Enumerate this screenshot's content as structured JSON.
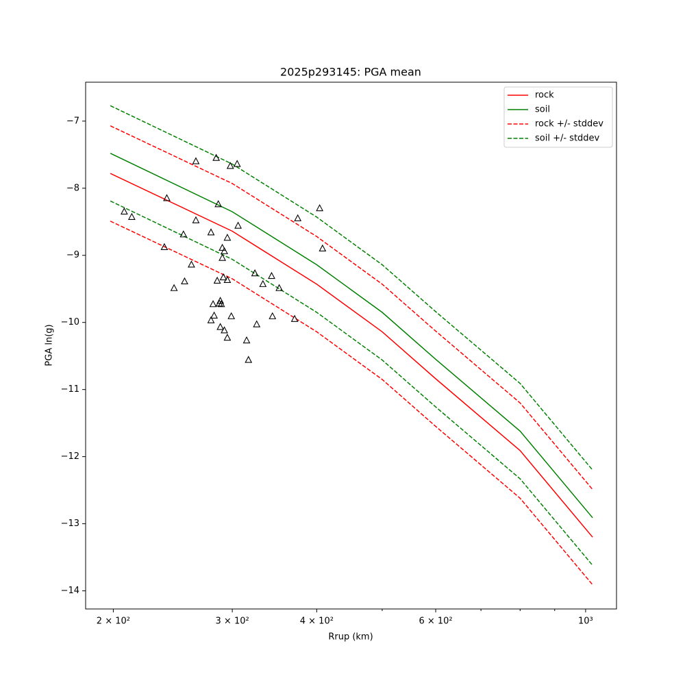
{
  "chart_data": {
    "type": "line",
    "title": "2025p293145: PGA mean",
    "xlabel": "Rrup (km)",
    "ylabel": "PGA ln(g)",
    "xscale": "log",
    "xlim": [
      182,
      1111
    ],
    "ylim": [
      -14.27,
      -6.42
    ],
    "xticks": [
      {
        "value": 200,
        "label": "2 × 10²"
      },
      {
        "value": 300,
        "label": "3 × 10²"
      },
      {
        "value": 400,
        "label": "4 × 10²"
      },
      {
        "value": 600,
        "label": "6 × 10²"
      },
      {
        "value": 1000,
        "label": "10³"
      }
    ],
    "xminorticks": [
      500,
      700,
      800,
      900
    ],
    "yticks": [
      {
        "value": -7,
        "label": "−7"
      },
      {
        "value": -8,
        "label": "−8"
      },
      {
        "value": -9,
        "label": "−9"
      },
      {
        "value": -10,
        "label": "−10"
      },
      {
        "value": -11,
        "label": "−11"
      },
      {
        "value": -12,
        "label": "−12"
      },
      {
        "value": -13,
        "label": "−13"
      },
      {
        "value": -14,
        "label": "−14"
      }
    ],
    "legend": "upper right",
    "x": [
      198,
      300,
      400,
      500,
      600,
      800,
      1024
    ],
    "series": [
      {
        "name": "rock",
        "color": "#ff0000",
        "style": "solid",
        "values": [
          -7.78,
          -8.64,
          -9.43,
          -10.14,
          -10.84,
          -11.91,
          -13.2
        ]
      },
      {
        "name": "soil",
        "color": "#008000",
        "style": "solid",
        "values": [
          -7.48,
          -8.35,
          -9.14,
          -9.85,
          -10.55,
          -11.62,
          -12.91
        ]
      },
      {
        "name": "rock +/- stddev",
        "color": "#ff0000",
        "style": "dashed",
        "upper": [
          -7.07,
          -7.93,
          -8.72,
          -9.43,
          -10.13,
          -11.2,
          -12.49
        ],
        "lower": [
          -8.49,
          -9.35,
          -10.14,
          -10.85,
          -11.55,
          -12.62,
          -13.91
        ]
      },
      {
        "name": "soil +/- stddev",
        "color": "#008000",
        "style": "dashed",
        "upper": [
          -6.77,
          -7.64,
          -8.43,
          -9.14,
          -9.84,
          -10.91,
          -12.2
        ],
        "lower": [
          -8.19,
          -9.06,
          -9.85,
          -10.56,
          -11.26,
          -12.33,
          -13.62
        ]
      }
    ],
    "points": {
      "color": "#000000",
      "x": [
        207.6,
        213,
        240,
        238,
        246,
        254,
        255,
        261,
        265,
        265,
        279,
        279,
        281,
        282,
        284,
        285,
        286,
        287,
        288,
        288,
        289,
        290,
        290,
        291,
        292,
        292,
        295,
        295,
        295,
        298,
        299,
        305,
        306,
        315,
        317,
        324,
        326,
        333,
        343,
        344,
        352,
        371,
        375,
        404,
        408
      ],
      "y": [
        -8.35,
        -8.43,
        -8.15,
        -8.88,
        -9.49,
        -8.69,
        -9.39,
        -9.14,
        -7.6,
        -8.48,
        -8.66,
        -9.97,
        -9.73,
        -9.9,
        -7.55,
        -9.38,
        -8.24,
        -9.72,
        -10.07,
        -9.68,
        -9.73,
        -9.04,
        -8.89,
        -9.33,
        -10.12,
        -8.94,
        -9.37,
        -8.74,
        -10.23,
        -7.67,
        -9.91,
        -7.64,
        -8.56,
        -10.27,
        -10.56,
        -9.27,
        -10.03,
        -9.43,
        -9.31,
        -9.91,
        -9.49,
        -9.95,
        -8.45,
        -8.3,
        -8.9
      ]
    }
  }
}
